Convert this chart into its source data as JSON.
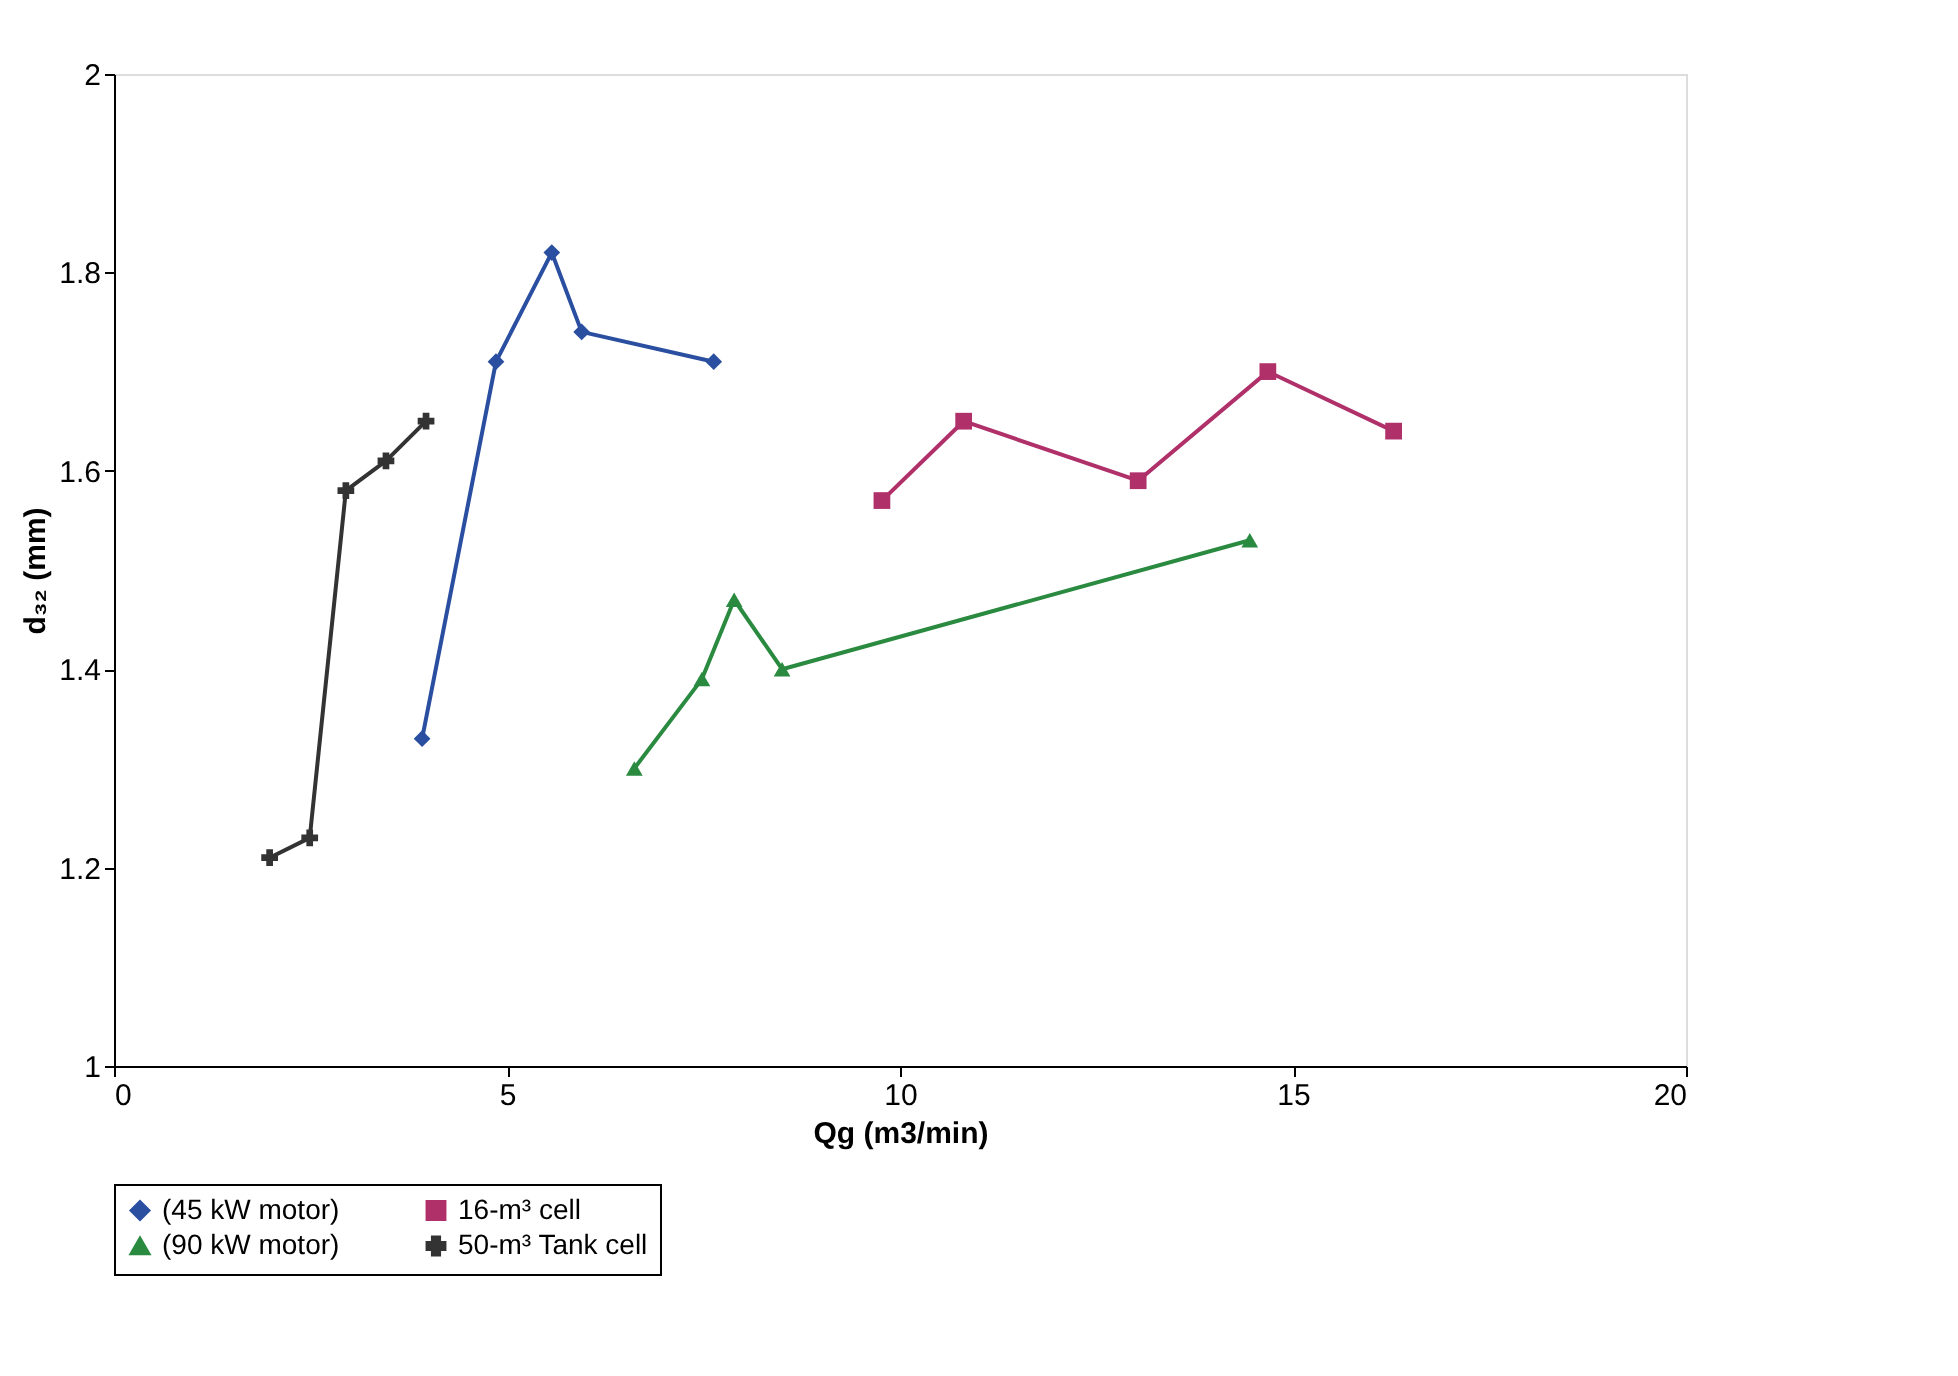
{
  "chart_data": {
    "type": "line",
    "xlabel": "Qg (m3/min)",
    "ylabel": "d₃₂ (mm)",
    "xlim": [
      0,
      20
    ],
    "xticks": [
      0,
      5,
      10,
      15,
      20
    ],
    "ylim": [
      1,
      2
    ],
    "yticks": [
      1,
      1.2,
      1.4,
      1.6,
      1.8,
      2
    ],
    "grid": false,
    "legend": "bottom",
    "series": [
      {
        "name": "(45 kW motor)",
        "color": "#2b4fa0",
        "marker": "diamond",
        "x": [
          3.92,
          4.86,
          5.57,
          5.95,
          7.63
        ],
        "values": [
          1.33,
          1.71,
          1.82,
          1.74,
          1.71
        ]
      },
      {
        "name": "16-m³ cell",
        "color": "#b0306a",
        "marker": "square",
        "x": [
          9.77,
          10.81,
          13.03,
          14.68,
          16.28
        ],
        "values": [
          1.57,
          1.65,
          1.59,
          1.7,
          1.64
        ]
      },
      {
        "name": "(90 kW motor)",
        "color": "#2a8a40",
        "marker": "triangle",
        "x": [
          6.62,
          7.48,
          7.89,
          8.5,
          14.45
        ],
        "values": [
          1.3,
          1.39,
          1.47,
          1.4,
          1.53
        ]
      },
      {
        "name": "50-m³ Tank cell",
        "color": "#333333",
        "marker": "cross",
        "x": [
          1.98,
          2.49,
          2.95,
          3.46,
          3.97
        ],
        "values": [
          1.21,
          1.23,
          1.58,
          1.61,
          1.65
        ]
      }
    ]
  }
}
